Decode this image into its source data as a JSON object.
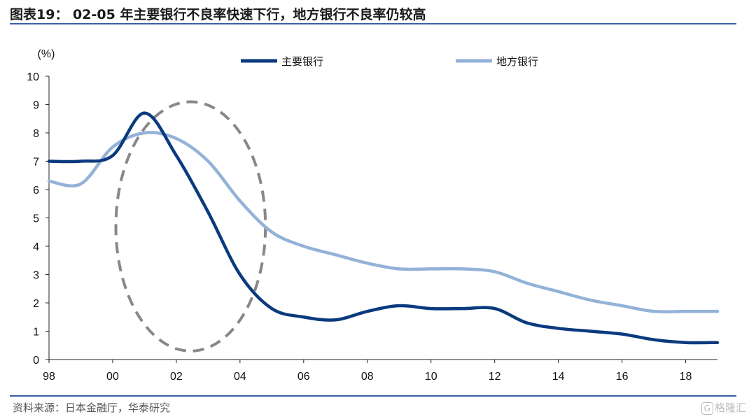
{
  "header": {
    "title": "图表19： 02-05 年主要银行不良率快速下行，地方银行不良率仍较高"
  },
  "footer": {
    "source": "资料来源：日本金融厅，华泰研究",
    "watermark": "格隆汇",
    "watermark_icon": "G"
  },
  "chart_data": {
    "type": "line",
    "unit_label": "(%)",
    "ylim": [
      0,
      10
    ],
    "yticks": [
      "0",
      "1",
      "2",
      "3",
      "4",
      "5",
      "6",
      "7",
      "8",
      "9",
      "10"
    ],
    "xlim": [
      1998,
      2019
    ],
    "xticks": [
      {
        "year": 1998,
        "label": "98"
      },
      {
        "year": 2000,
        "label": "00"
      },
      {
        "year": 2002,
        "label": "02"
      },
      {
        "year": 2004,
        "label": "04"
      },
      {
        "year": 2006,
        "label": "06"
      },
      {
        "year": 2008,
        "label": "08"
      },
      {
        "year": 2010,
        "label": "10"
      },
      {
        "year": 2012,
        "label": "12"
      },
      {
        "year": 2014,
        "label": "14"
      },
      {
        "year": 2016,
        "label": "16"
      },
      {
        "year": 2018,
        "label": "18"
      }
    ],
    "grid": false,
    "legend_position": "top",
    "series": [
      {
        "name": "主要银行",
        "color": "#0b3a7e",
        "x": [
          1998,
          1999,
          2000,
          2001,
          2002,
          2003,
          2004,
          2005,
          2006,
          2007,
          2008,
          2009,
          2010,
          2011,
          2012,
          2013,
          2014,
          2015,
          2016,
          2017,
          2018,
          2019
        ],
        "values": [
          7.0,
          7.0,
          7.2,
          8.7,
          7.2,
          5.2,
          3.0,
          1.8,
          1.5,
          1.4,
          1.7,
          1.9,
          1.8,
          1.8,
          1.8,
          1.3,
          1.1,
          1.0,
          0.9,
          0.7,
          0.6,
          0.6
        ]
      },
      {
        "name": "地方银行",
        "color": "#93b2d8",
        "x": [
          1998,
          1999,
          2000,
          2001,
          2002,
          2003,
          2004,
          2005,
          2006,
          2007,
          2008,
          2009,
          2010,
          2011,
          2012,
          2013,
          2014,
          2015,
          2016,
          2017,
          2018,
          2019
        ],
        "values": [
          6.3,
          6.2,
          7.5,
          8.0,
          7.8,
          7.0,
          5.6,
          4.5,
          4.0,
          3.7,
          3.4,
          3.2,
          3.2,
          3.2,
          3.1,
          2.7,
          2.4,
          2.1,
          1.9,
          1.7,
          1.7,
          1.7
        ]
      }
    ],
    "highlight": {
      "shape": "ellipse",
      "style": "dashed",
      "color": "#888888",
      "x_range": [
        2000.1,
        2004.8
      ],
      "y_range": [
        0.3,
        9.1
      ]
    }
  }
}
